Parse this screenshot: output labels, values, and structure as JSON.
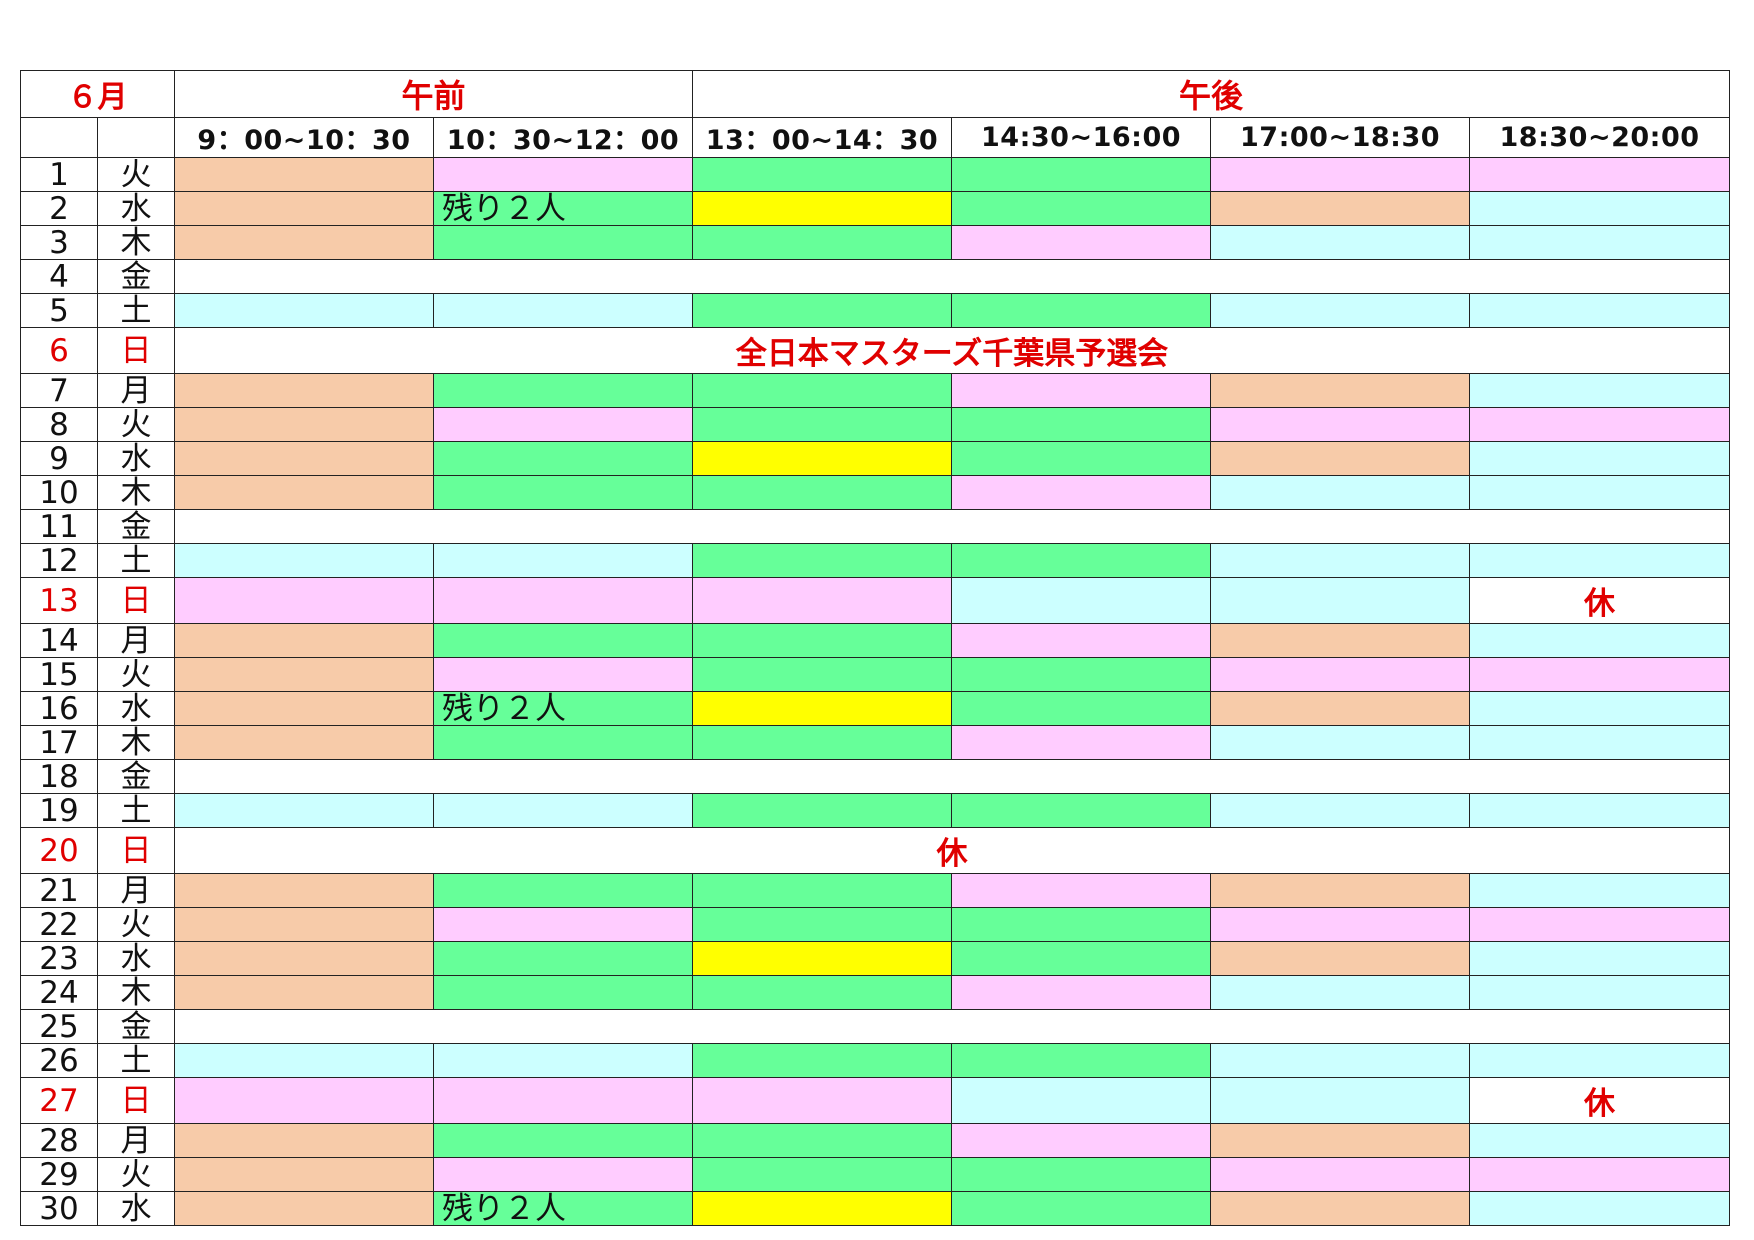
{
  "header": {
    "month": "６月",
    "am": "午前",
    "pm": "午後",
    "times": [
      "9：00~10：30",
      "10：30~12：00",
      "13：00~14：30",
      "14:30~16:00",
      "17:00~18:30",
      "18:30~20:00"
    ]
  },
  "colors": {
    "O": "#f7cba9",
    "P": "#ffccff",
    "G": "#66ff99",
    "Y": "#ffff00",
    "C": "#ccffff",
    "W": "#ffffff",
    "holiday_text": "#e00000"
  },
  "days": [
    {
      "day": "1",
      "wd": "火",
      "cells": [
        "O",
        "P",
        "G",
        "G",
        "P",
        "P"
      ]
    },
    {
      "day": "2",
      "wd": "水",
      "cells": [
        "O",
        "G",
        "Y",
        "G",
        "O",
        "C"
      ],
      "note": "残り２人"
    },
    {
      "day": "3",
      "wd": "木",
      "cells": [
        "O",
        "G",
        "G",
        "P",
        "C",
        "C"
      ]
    },
    {
      "day": "4",
      "wd": "金",
      "full": ""
    },
    {
      "day": "5",
      "wd": "土",
      "cells": [
        "C",
        "C",
        "G",
        "G",
        "C",
        "C"
      ]
    },
    {
      "day": "6",
      "wd": "日",
      "holiday": true,
      "full": "全日本マスターズ千葉県予選会"
    },
    {
      "day": "7",
      "wd": "月",
      "cells": [
        "O",
        "G",
        "G",
        "P",
        "O",
        "C"
      ]
    },
    {
      "day": "8",
      "wd": "火",
      "cells": [
        "O",
        "P",
        "G",
        "G",
        "P",
        "P"
      ]
    },
    {
      "day": "9",
      "wd": "水",
      "cells": [
        "O",
        "G",
        "Y",
        "G",
        "O",
        "C"
      ]
    },
    {
      "day": "10",
      "wd": "木",
      "cells": [
        "O",
        "G",
        "G",
        "P",
        "C",
        "C"
      ]
    },
    {
      "day": "11",
      "wd": "金",
      "full": ""
    },
    {
      "day": "12",
      "wd": "土",
      "cells": [
        "C",
        "C",
        "G",
        "G",
        "C",
        "C"
      ]
    },
    {
      "day": "13",
      "wd": "日",
      "holiday": true,
      "cells": [
        "P",
        "P",
        "P",
        "C",
        "C",
        "W"
      ],
      "closed_label": "休"
    },
    {
      "day": "14",
      "wd": "月",
      "cells": [
        "O",
        "G",
        "G",
        "P",
        "O",
        "C"
      ]
    },
    {
      "day": "15",
      "wd": "火",
      "cells": [
        "O",
        "P",
        "G",
        "G",
        "P",
        "P"
      ]
    },
    {
      "day": "16",
      "wd": "水",
      "cells": [
        "O",
        "G",
        "Y",
        "G",
        "O",
        "C"
      ],
      "note": "残り２人"
    },
    {
      "day": "17",
      "wd": "木",
      "cells": [
        "O",
        "G",
        "G",
        "P",
        "C",
        "C"
      ]
    },
    {
      "day": "18",
      "wd": "金",
      "full": ""
    },
    {
      "day": "19",
      "wd": "土",
      "cells": [
        "C",
        "C",
        "G",
        "G",
        "C",
        "C"
      ]
    },
    {
      "day": "20",
      "wd": "日",
      "holiday": true,
      "full": "休"
    },
    {
      "day": "21",
      "wd": "月",
      "cells": [
        "O",
        "G",
        "G",
        "P",
        "O",
        "C"
      ]
    },
    {
      "day": "22",
      "wd": "火",
      "cells": [
        "O",
        "P",
        "G",
        "G",
        "P",
        "P"
      ]
    },
    {
      "day": "23",
      "wd": "水",
      "cells": [
        "O",
        "G",
        "Y",
        "G",
        "O",
        "C"
      ]
    },
    {
      "day": "24",
      "wd": "木",
      "cells": [
        "O",
        "G",
        "G",
        "P",
        "C",
        "C"
      ]
    },
    {
      "day": "25",
      "wd": "金",
      "full": ""
    },
    {
      "day": "26",
      "wd": "土",
      "cells": [
        "C",
        "C",
        "G",
        "G",
        "C",
        "C"
      ]
    },
    {
      "day": "27",
      "wd": "日",
      "holiday": true,
      "cells": [
        "P",
        "P",
        "P",
        "C",
        "C",
        "W"
      ],
      "closed_label": "休"
    },
    {
      "day": "28",
      "wd": "月",
      "cells": [
        "O",
        "G",
        "G",
        "P",
        "O",
        "C"
      ]
    },
    {
      "day": "29",
      "wd": "火",
      "cells": [
        "O",
        "P",
        "G",
        "G",
        "P",
        "P"
      ]
    },
    {
      "day": "30",
      "wd": "水",
      "cells": [
        "O",
        "G",
        "Y",
        "G",
        "O",
        "C"
      ],
      "note": "残り２人"
    }
  ]
}
